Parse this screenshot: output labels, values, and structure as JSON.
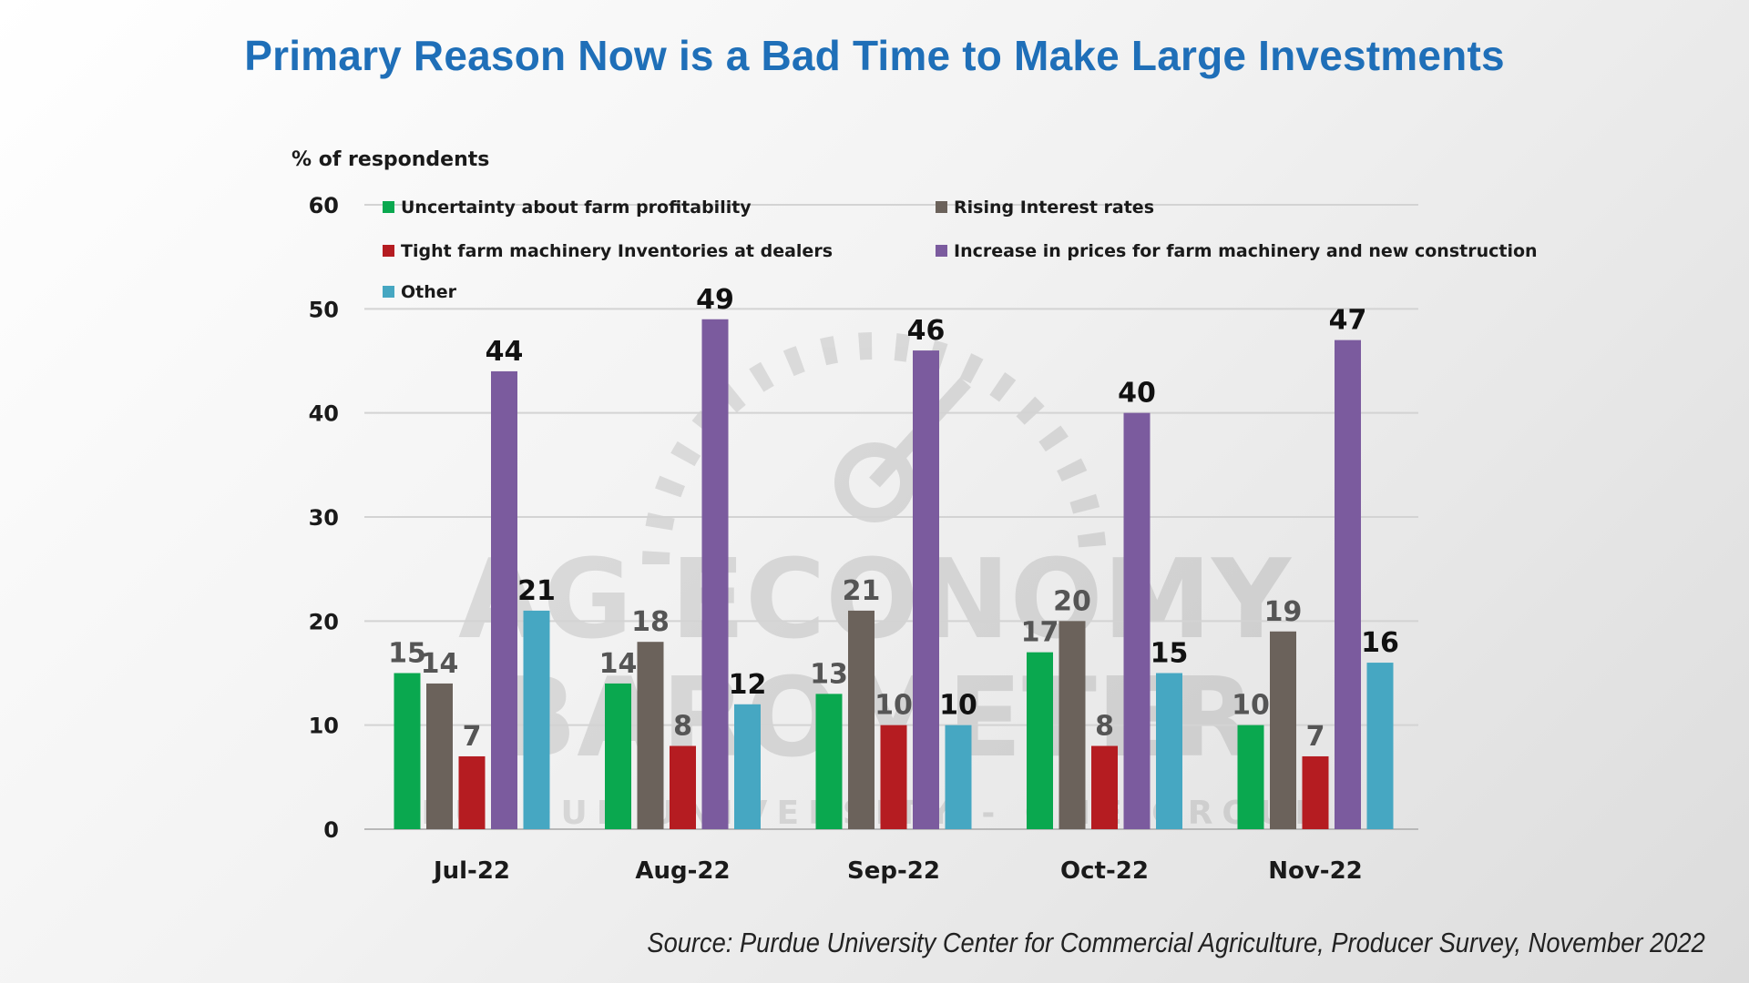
{
  "title": "Primary Reason Now is a Bad Time to Make Large Investments",
  "source": "Source: Purdue University Center for Commercial Agriculture, Producer Survey, November 2022",
  "chart_data": {
    "type": "bar",
    "ylabel": "% of respondents",
    "ylim": [
      0,
      60
    ],
    "yticks": [
      0,
      10,
      20,
      30,
      40,
      50,
      60
    ],
    "grid": true,
    "legend_position": "top",
    "categories": [
      "Jul-22",
      "Aug-22",
      "Sep-22",
      "Oct-22",
      "Nov-22"
    ],
    "series": [
      {
        "name": "Uncertainty about farm profitability",
        "color": "#0aa84f",
        "label_color": "#555555",
        "values": [
          15,
          14,
          13,
          17,
          10
        ],
        "labels": [
          "15",
          "14",
          "13",
          "17",
          "10"
        ]
      },
      {
        "name": "Rising Interest rates",
        "color": "#6b625b",
        "label_color": "#555555",
        "values": [
          14,
          18,
          21,
          20,
          19
        ],
        "labels": [
          "14",
          "18",
          "21",
          "20",
          "19"
        ]
      },
      {
        "name": "Tight farm machinery Inventories at dealers",
        "color": "#b51c21",
        "label_color": "#555555",
        "values": [
          7,
          8,
          10,
          8,
          7
        ],
        "labels": [
          "7",
          "8",
          "10",
          "8",
          "7"
        ]
      },
      {
        "name": "Increase in prices for farm machinery and new construction",
        "color": "#7b5b9e",
        "label_color": "#111111",
        "values": [
          44,
          49,
          46,
          40,
          47
        ],
        "labels": [
          "44",
          "49",
          "46",
          "40",
          "47"
        ]
      },
      {
        "name": "Other",
        "color": "#46a7c2",
        "label_color": "#111111",
        "values": [
          21,
          12,
          10,
          15,
          16
        ],
        "labels": [
          "21",
          "12",
          "10",
          "15",
          "16"
        ]
      }
    ]
  },
  "watermark": {
    "line1": "AG ECONOMY",
    "line2": "BAROMETER",
    "line3": "PURDUE UNIVERSITY - CME GROUP"
  }
}
